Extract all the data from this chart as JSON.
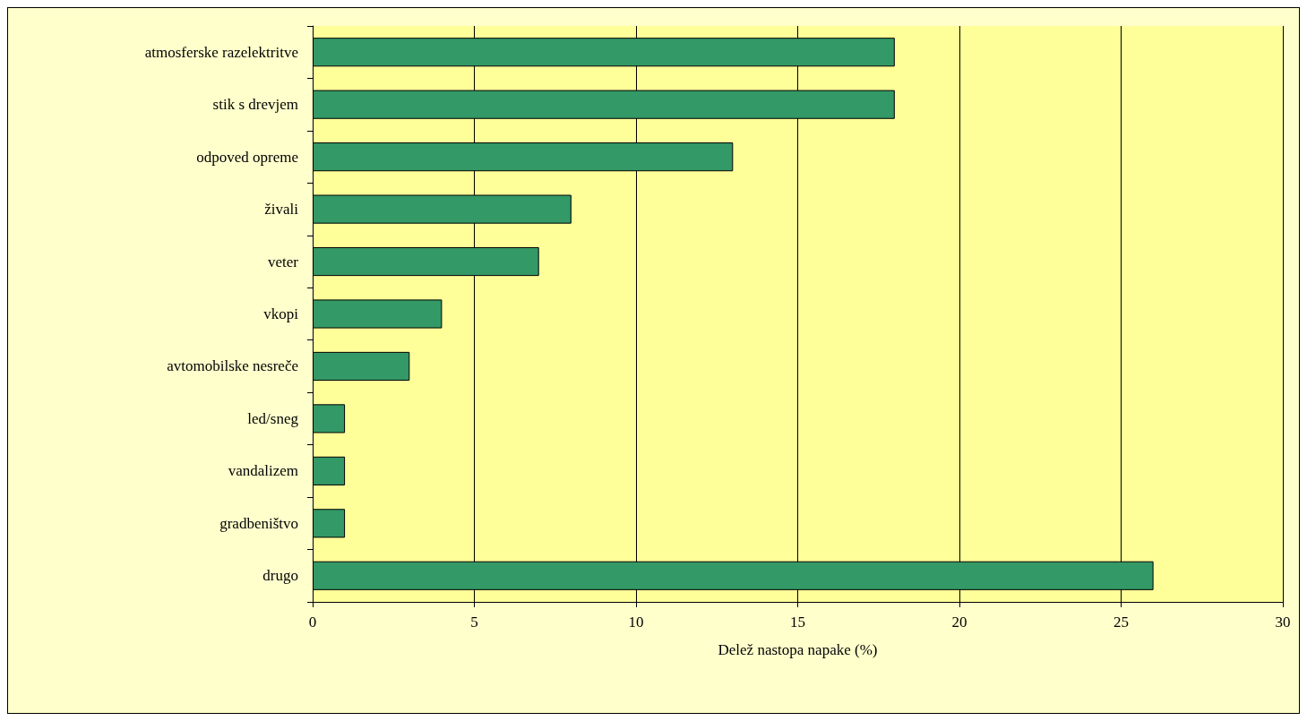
{
  "chart_data": {
    "type": "bar",
    "orientation": "horizontal",
    "xlabel": "Delež nastopa napake (%)",
    "categories": [
      "atmosferske razelektritve",
      "stik s drevjem",
      "odpoved opreme",
      "živali",
      "veter",
      "vkopi",
      "avtomobilske nesreče",
      "led/sneg",
      "vandalizem",
      "gradbeništvo",
      "drugo"
    ],
    "values": [
      18,
      18,
      13,
      8,
      7,
      4,
      3,
      1,
      1,
      1,
      26
    ],
    "color": "#339966",
    "xlim": [
      0,
      30
    ],
    "xticks": [
      0,
      5,
      10,
      15,
      20,
      25,
      30
    ],
    "grid": "x"
  }
}
